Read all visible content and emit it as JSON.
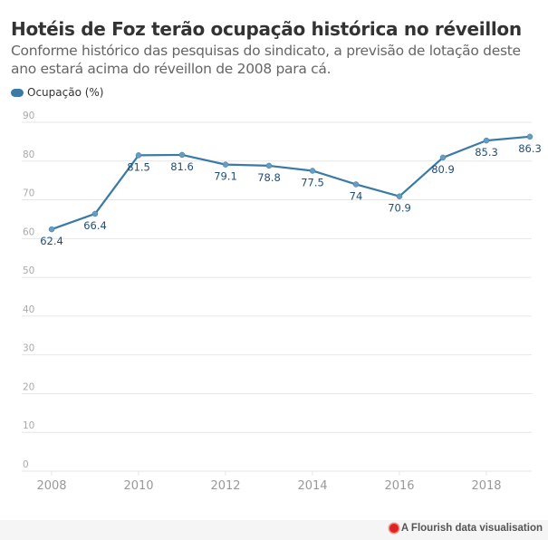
{
  "header": {
    "title": "Hotéis de Foz terão ocupação histórica no réveillon",
    "subtitle": "Conforme histórico das pesquisas do sindicato, a previsão de lotação deste ano estará acima do réveillon de 2008 para cá."
  },
  "footer": {
    "credit": "A Flourish data visualisation",
    "icon": "flourish-logo-icon"
  },
  "colors": {
    "series": "#3a7aa6",
    "label": "#1f4e79",
    "grid": "#e6e6e6",
    "tick": "#999999"
  },
  "chart_data": {
    "type": "line",
    "title": "Hotéis de Foz terão ocupação histórica no réveillon",
    "subtitle": "Conforme histórico das pesquisas do sindicato, a previsão de lotação deste ano estará acima do réveillon de 2008 para cá.",
    "xlabel": "",
    "ylabel": "",
    "legend": {
      "placement": "top-left",
      "entries": [
        "Ocupação (%)"
      ]
    },
    "x": [
      2008,
      2009,
      2010,
      2011,
      2012,
      2013,
      2014,
      2015,
      2016,
      2017,
      2018,
      2019
    ],
    "series": [
      {
        "name": "Ocupação (%)",
        "values": [
          62.4,
          66.4,
          81.5,
          81.6,
          79.1,
          78.8,
          77.5,
          74,
          70.9,
          80.9,
          85.3,
          86.3
        ],
        "labels": [
          "62.4",
          "66.4",
          "81.5",
          "81.6",
          "79.1",
          "78.8",
          "77.5",
          "74",
          "70.9",
          "80.9",
          "85.3",
          "86.3"
        ]
      }
    ],
    "xlim": [
      2008,
      2019
    ],
    "ylim": [
      0,
      90
    ],
    "xticks": [
      "2008",
      "2010",
      "2012",
      "2014",
      "2016",
      "2018"
    ],
    "yticks": [
      "0",
      "10",
      "20",
      "30",
      "40",
      "50",
      "60",
      "70",
      "80",
      "90"
    ],
    "grid": true
  }
}
